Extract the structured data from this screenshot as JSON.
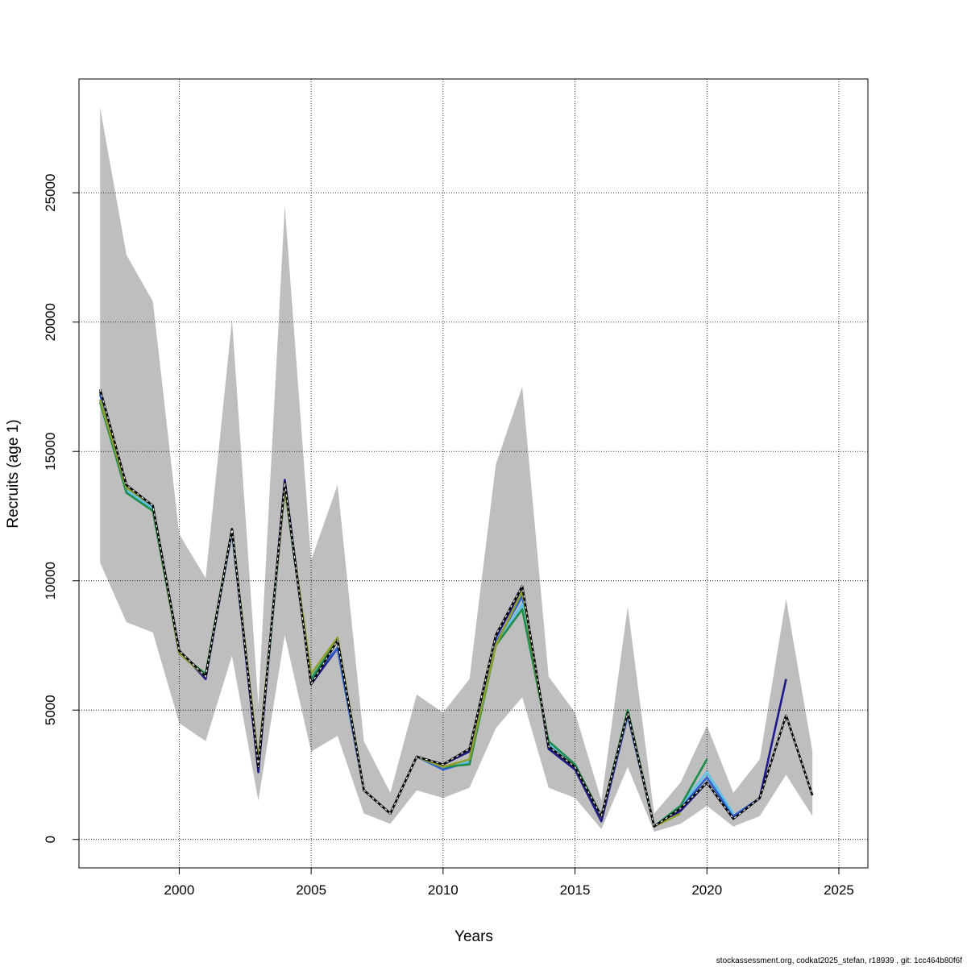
{
  "chart_data": {
    "type": "line",
    "title": "",
    "xlabel": "Years",
    "ylabel": "Recruits (age 1)",
    "xlim": [
      1996.2,
      2026.1
    ],
    "ylim": [
      -1100,
      29400
    ],
    "x_ticks": [
      2000,
      2005,
      2010,
      2015,
      2020,
      2025
    ],
    "y_ticks": [
      0,
      5000,
      10000,
      15000,
      20000,
      25000
    ],
    "grid": true,
    "grid_style": "dotted",
    "legend": "none",
    "confidence_band": {
      "color": "#bebebe",
      "x": [
        1997,
        1998,
        1999,
        2000,
        2001,
        2002,
        2003,
        2004,
        2005,
        2006,
        2007,
        2008,
        2009,
        2010,
        2011,
        2012,
        2013,
        2014,
        2015,
        2016,
        2017,
        2018,
        2019,
        2020,
        2021,
        2022,
        2023,
        2024
      ],
      "upper": [
        28300,
        22600,
        20800,
        11800,
        10100,
        20100,
        5200,
        24500,
        10800,
        13700,
        3800,
        1800,
        5600,
        4900,
        6200,
        14500,
        17500,
        6300,
        4900,
        1500,
        9000,
        1000,
        2200,
        4400,
        1800,
        3100,
        9300,
        3400
      ],
      "lower": [
        10700,
        8400,
        8000,
        4500,
        3800,
        7100,
        1500,
        7900,
        3400,
        4000,
        1000,
        600,
        1900,
        1600,
        2000,
        4300,
        5500,
        2000,
        1600,
        400,
        2800,
        300,
        600,
        1300,
        500,
        900,
        2500,
        900
      ]
    },
    "series": [
      {
        "color": "#000000",
        "dashed_overlay": true,
        "x": [
          1997,
          1998,
          1999,
          2000,
          2001,
          2002,
          2003,
          2004,
          2005,
          2006,
          2007,
          2008,
          2009,
          2010,
          2011,
          2012,
          2013,
          2014,
          2015,
          2016,
          2017,
          2018,
          2019,
          2020,
          2021,
          2022,
          2023,
          2024
        ],
        "values": [
          17400,
          13700,
          12900,
          7300,
          6300,
          12000,
          2800,
          13800,
          6000,
          7700,
          1900,
          1000,
          3200,
          2900,
          3500,
          7900,
          9800,
          3600,
          2800,
          900,
          4900,
          500,
          1200,
          2200,
          800,
          1600,
          4800,
          1700
        ]
      },
      {
        "color": "#1f1a8c",
        "x": [
          1997,
          1998,
          1999,
          2000,
          2001,
          2002,
          2003,
          2004,
          2005,
          2006,
          2007,
          2008,
          2009,
          2010,
          2011,
          2012,
          2013,
          2014,
          2015,
          2016,
          2017,
          2018,
          2019,
          2020,
          2021,
          2022,
          2023
        ],
        "values": [
          17300,
          13700,
          12900,
          7300,
          6200,
          12000,
          2600,
          13900,
          6000,
          7400,
          1900,
          1000,
          3200,
          2900,
          3400,
          7800,
          9700,
          3500,
          2700,
          700,
          4800,
          500,
          1100,
          2200,
          800,
          1600,
          6200
        ]
      },
      {
        "color": "#2a5fd4",
        "x": [
          1997,
          1998,
          1999,
          2000,
          2001,
          2002,
          2003,
          2004,
          2005,
          2006,
          2007,
          2008,
          2009,
          2010,
          2011,
          2012,
          2013,
          2014,
          2015,
          2016,
          2017,
          2018,
          2019,
          2020,
          2021,
          2022
        ],
        "values": [
          17200,
          13500,
          12800,
          7200,
          6300,
          11900,
          2800,
          13600,
          6200,
          7400,
          1900,
          1000,
          3200,
          2700,
          3000,
          7600,
          9400,
          3600,
          2800,
          900,
          4800,
          500,
          1200,
          2400,
          900,
          1600
        ]
      },
      {
        "color": "#5fc3e8",
        "x": [
          1997,
          1998,
          1999,
          2000,
          2001,
          2002,
          2003,
          2004,
          2005,
          2006,
          2007,
          2008,
          2009,
          2010,
          2011,
          2012,
          2013,
          2014,
          2015,
          2016,
          2017,
          2018,
          2019,
          2020,
          2021
        ],
        "values": [
          17000,
          13500,
          12800,
          7200,
          6300,
          12000,
          2900,
          13600,
          6300,
          7700,
          1900,
          1000,
          3200,
          2800,
          3000,
          7500,
          9100,
          3700,
          2900,
          900,
          4900,
          500,
          1300,
          2600,
          1000
        ]
      },
      {
        "color": "#1f8c4a",
        "x": [
          1997,
          1998,
          1999,
          2000,
          2001,
          2002,
          2003,
          2004,
          2005,
          2006,
          2007,
          2008,
          2009,
          2010,
          2011,
          2012,
          2013,
          2014,
          2015,
          2016,
          2017,
          2018,
          2019,
          2020
        ],
        "values": [
          16900,
          13400,
          12700,
          7200,
          6400,
          12000,
          2900,
          13600,
          6200,
          7700,
          1900,
          1000,
          3200,
          2800,
          2900,
          7500,
          8900,
          3800,
          2900,
          900,
          5000,
          500,
          1300,
          3100
        ]
      },
      {
        "color": "#8fa12a",
        "x": [
          1997,
          1998,
          1999,
          2000,
          2001,
          2002,
          2003,
          2004,
          2005,
          2006,
          2007,
          2008,
          2009,
          2010,
          2011,
          2012,
          2013,
          2014,
          2015,
          2016,
          2017,
          2018,
          2019
        ],
        "values": [
          17000,
          13600,
          12900,
          7200,
          6300,
          12000,
          3000,
          13600,
          6400,
          7800,
          1900,
          1000,
          3200,
          2800,
          3100,
          7500,
          9600,
          3600,
          2800,
          900,
          4900,
          500,
          1000
        ]
      }
    ]
  },
  "footer": {
    "note": "stockassessment.org, codkat2025_stefan, r18939 , git: 1cc464b80f6f"
  }
}
